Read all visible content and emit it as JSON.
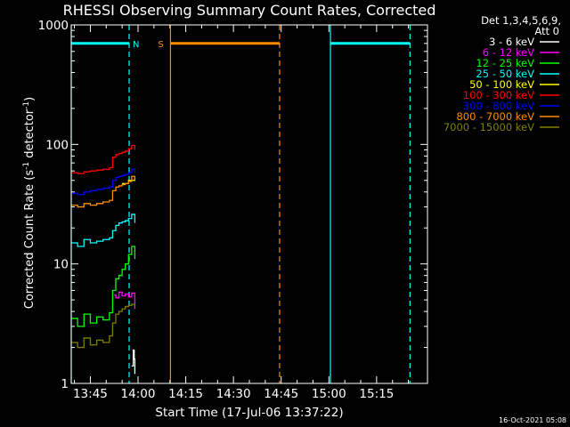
{
  "chart_data": {
    "type": "line",
    "title": "RHESSI Observing Summary Count Rates, Corrected",
    "xlabel": "Start Time (17-Jul-06 13:37:22)",
    "ylabel_main": "Corrected Count Rate (s",
    "ylabel_sup1": "-1",
    "ylabel_mid": " detector",
    "ylabel_sup2": "-1",
    "ylabel_end": ")",
    "ylog": true,
    "ylim": [
      1,
      1000
    ],
    "xlim_minutes": [
      -6,
      106
    ],
    "x_ticks": [
      {
        "m": 0,
        "label": "13:45"
      },
      {
        "m": 15,
        "label": "14:00"
      },
      {
        "m": 30,
        "label": "14:15"
      },
      {
        "m": 45,
        "label": "14:30"
      },
      {
        "m": 60,
        "label": "14:45"
      },
      {
        "m": 75,
        "label": "15:00"
      },
      {
        "m": 90,
        "label": "15:15"
      }
    ],
    "y_ticks": [
      {
        "v": 1,
        "label": "1"
      },
      {
        "v": 10,
        "label": "10"
      },
      {
        "v": 100,
        "label": "100"
      },
      {
        "v": 1000,
        "label": "1000"
      }
    ],
    "legend_header": [
      "Det 1,3,4,5,6,9,",
      "Att 0"
    ],
    "series": [
      {
        "name": "3 - 6 keV",
        "color": "#ffffff",
        "x": [
          13.0,
          13.5,
          13.8,
          14.0
        ],
        "y": [
          1.4,
          1.9,
          1.6,
          1.2
        ]
      },
      {
        "name": "6 - 12 keV",
        "color": "#ff00ff",
        "x": [
          7.5,
          8.0,
          9.0,
          10.0,
          11.0,
          12.0,
          13.0,
          14.0
        ],
        "y": [
          5.5,
          5.2,
          5.8,
          5.4,
          5.6,
          5.3,
          5.7,
          4.2
        ]
      },
      {
        "name": "12 - 25 keV",
        "color": "#00ff00",
        "x": [
          -6,
          -4,
          -2,
          0,
          2,
          4,
          6,
          7,
          8,
          9,
          10,
          11,
          12,
          13,
          14
        ],
        "y": [
          3.5,
          3.0,
          3.8,
          3.2,
          3.6,
          3.4,
          3.9,
          6.0,
          7.5,
          8.0,
          9.0,
          10.0,
          12.0,
          14.0,
          11.0
        ]
      },
      {
        "name": "25 - 50 keV",
        "color": "#00ffff",
        "x": [
          -6,
          -4,
          -2,
          0,
          2,
          4,
          6,
          7,
          8,
          9,
          10,
          11,
          12,
          13,
          14
        ],
        "y": [
          15,
          14,
          16,
          15,
          15.5,
          16,
          16.5,
          19,
          21,
          22,
          22.5,
          23,
          24,
          26,
          22
        ]
      },
      {
        "name": "50 - 100 keV",
        "color": "#ffff00",
        "x": [
          10.0,
          12.0,
          14.0
        ],
        "y": [
          47,
          50,
          52
        ]
      },
      {
        "name": "100 - 300 keV",
        "color": "#ff0000",
        "x": [
          -6,
          -4,
          -2,
          0,
          2,
          4,
          6,
          7,
          8,
          9,
          10,
          11,
          12,
          13,
          14
        ],
        "y": [
          58,
          57,
          59,
          60,
          61,
          62,
          64,
          78,
          82,
          84,
          86,
          88,
          92,
          98,
          90
        ]
      },
      {
        "name": "300 - 800 keV",
        "color": "#0000ff",
        "x": [
          -6,
          -4,
          -2,
          0,
          2,
          4,
          6,
          7,
          8,
          9,
          10,
          11,
          12,
          13,
          14
        ],
        "y": [
          39,
          38,
          40,
          41,
          42,
          43,
          44,
          50,
          53,
          54,
          55,
          56,
          58,
          62,
          58
        ]
      },
      {
        "name": "800 - 7000 keV",
        "color": "#ff8c00",
        "x": [
          -6,
          -4,
          -2,
          0,
          2,
          4,
          6,
          7,
          8,
          9,
          10,
          11,
          12,
          13,
          14
        ],
        "y": [
          31,
          30,
          32,
          31,
          32,
          33,
          34,
          41,
          44,
          45,
          46,
          47,
          49,
          54,
          50
        ]
      },
      {
        "name": "7000 - 15000 keV",
        "color": "#808000",
        "x": [
          -6,
          -4,
          -2,
          0,
          2,
          4,
          6,
          7,
          8,
          9,
          10,
          11,
          12,
          13,
          14
        ],
        "y": [
          2.2,
          2.0,
          2.4,
          2.1,
          2.3,
          2.2,
          2.5,
          3.2,
          3.8,
          4.0,
          4.2,
          4.4,
          4.5,
          4.6,
          4.4
        ]
      }
    ],
    "night_intervals": [
      {
        "start": -6.0,
        "end": 12.2
      },
      {
        "start": 75.5,
        "end": 100.5
      }
    ],
    "night_label": "N",
    "night_color": "#00ffff",
    "saa_intervals": [
      {
        "start": 25.2,
        "end": 59.5
      }
    ],
    "saa_label": "S",
    "saa_color": "#ff8c00",
    "bar_level": 700
  },
  "footer": {
    "date": "16-Oct-2021 05:08"
  }
}
